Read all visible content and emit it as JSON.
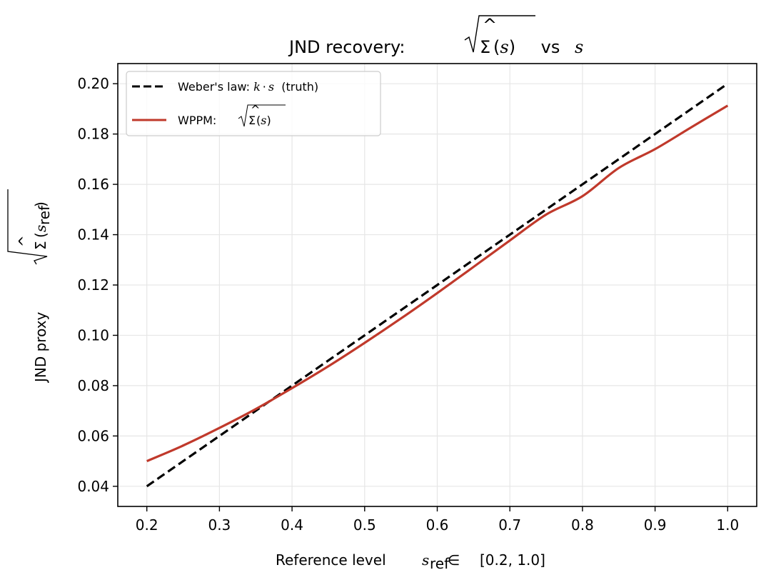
{
  "chart_data": {
    "type": "line",
    "title": {
      "prefix": "JND recovery: ",
      "sigma": "Σ",
      "hat": "^",
      "arg": "(s)",
      "mid": " vs ",
      "var": "s"
    },
    "xlabel": {
      "prefix": "Reference level  ",
      "var": "s",
      "sub": "ref",
      "in": "∈",
      "range": "[0.2, 1.0]"
    },
    "ylabel": {
      "prefix": "JND proxy  ",
      "sigma": "Σ",
      "hat": "^",
      "arg_open": "(",
      "var": "s",
      "sub": "ref",
      "arg_close": ")"
    },
    "xlim": [
      0.16,
      1.04
    ],
    "ylim": [
      0.032,
      0.208
    ],
    "xticks": [
      "0.2",
      "0.3",
      "0.4",
      "0.5",
      "0.6",
      "0.7",
      "0.8",
      "0.9",
      "1.0"
    ],
    "yticks": [
      "0.04",
      "0.06",
      "0.08",
      "0.10",
      "0.12",
      "0.14",
      "0.16",
      "0.18",
      "0.20"
    ],
    "grid": true,
    "legend_position": "upper-left",
    "series": [
      {
        "name": "Weber's law: k · s  (truth)",
        "legend": {
          "prefix": "Weber's law: ",
          "k": "k",
          "dot": "·",
          "s": "s",
          "suffix": "  (truth)"
        },
        "color": "#000000",
        "style": "dashed",
        "x": [
          0.2,
          0.3,
          0.4,
          0.5,
          0.6,
          0.7,
          0.8,
          0.9,
          1.0
        ],
        "y": [
          0.04,
          0.06,
          0.08,
          0.1,
          0.12,
          0.14,
          0.16,
          0.18,
          0.2
        ]
      },
      {
        "name": "WPPM: √Σ̂(s)",
        "legend": {
          "prefix": "WPPM: ",
          "sigma": "Σ",
          "hat": "^",
          "arg": "(s)"
        },
        "color": "#c0392b",
        "style": "solid",
        "x": [
          0.2,
          0.25,
          0.3,
          0.35,
          0.4,
          0.45,
          0.5,
          0.55,
          0.6,
          0.65,
          0.7,
          0.75,
          0.8,
          0.85,
          0.9,
          0.95,
          1.0
        ],
        "y": [
          0.05,
          0.0562,
          0.0632,
          0.0707,
          0.079,
          0.0877,
          0.097,
          0.1067,
          0.1168,
          0.1272,
          0.1377,
          0.148,
          0.1553,
          0.1665,
          0.174,
          0.1827,
          0.1913
        ]
      }
    ]
  }
}
